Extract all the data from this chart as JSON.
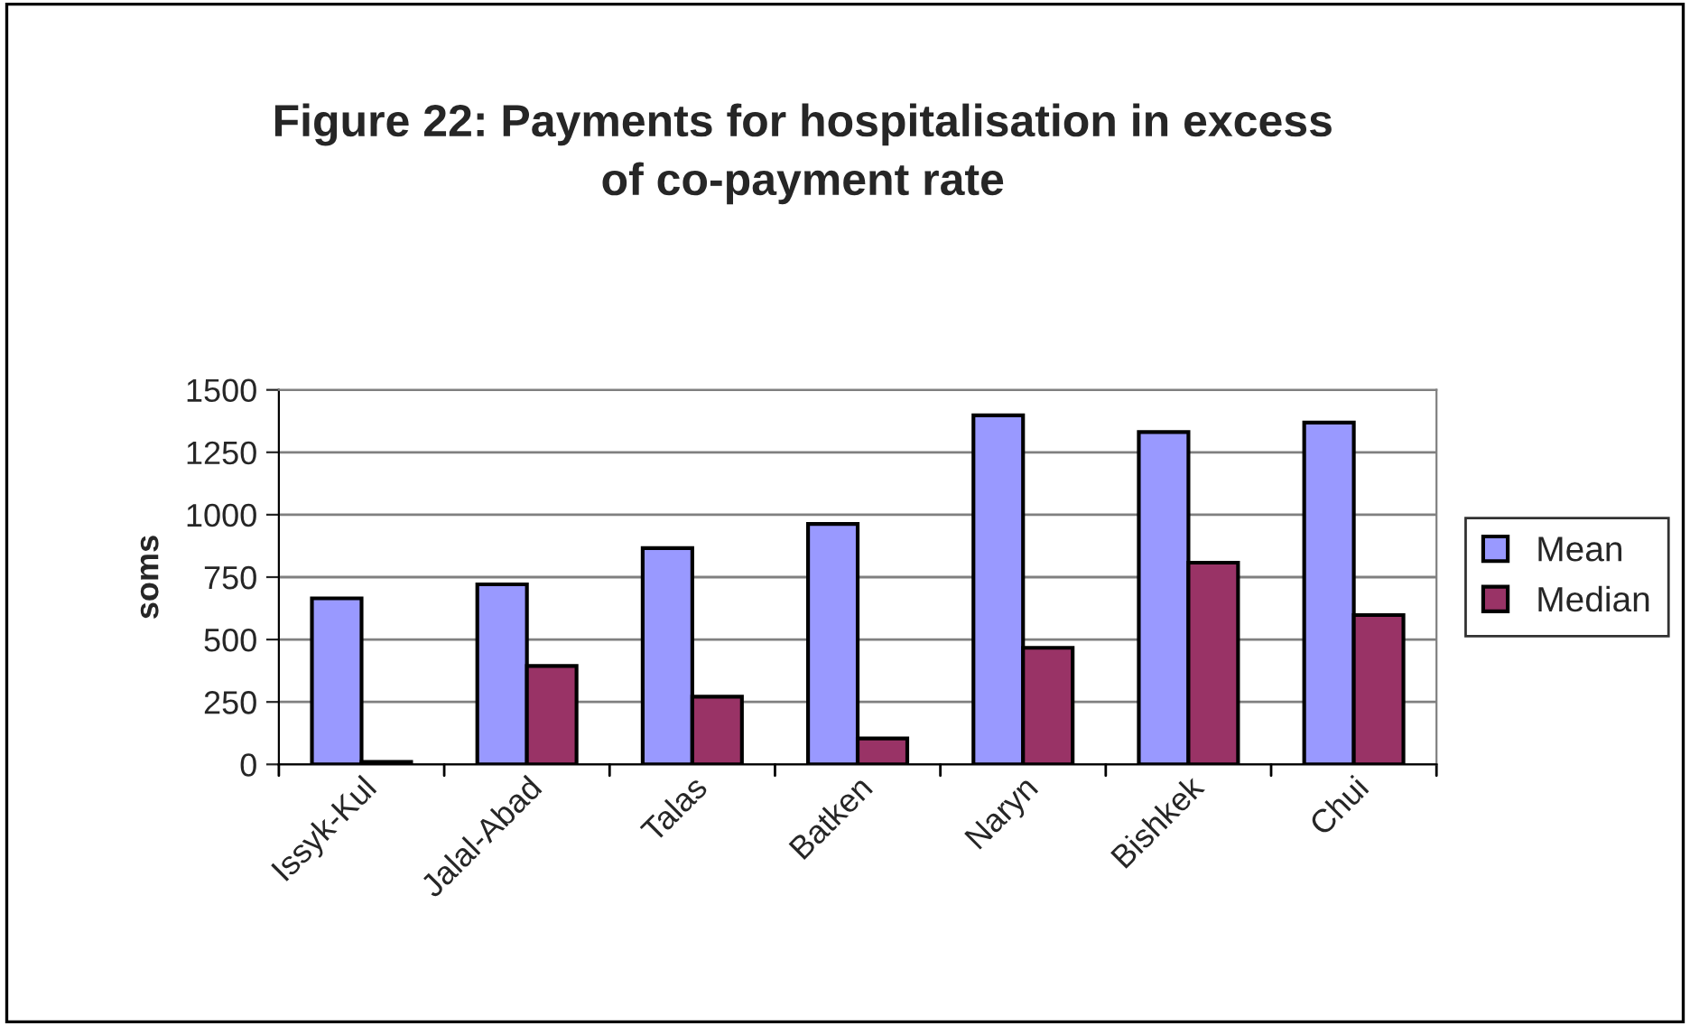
{
  "chart_data": {
    "type": "bar",
    "title": "Figure 22: Payments for hospitalisation in excess\nof co-payment rate",
    "ylabel": "soms",
    "categories": [
      "Issyk-Kul",
      "Jalal-Abad",
      "Talas",
      "Batken",
      "Naryn",
      "Bishkek",
      "Chui"
    ],
    "series": [
      {
        "name": "Mean",
        "color": "#9999ff",
        "values": [
          665,
          721,
          866,
          963,
          1398,
          1331,
          1369
        ]
      },
      {
        "name": "Median",
        "color": "#993366",
        "values": [
          10,
          394,
          271,
          104,
          467,
          808,
          598
        ]
      }
    ],
    "ylim": [
      0,
      1500
    ],
    "yticks": [
      0,
      250,
      500,
      750,
      1000,
      1250,
      1500
    ],
    "grid": "y",
    "legend": "right"
  }
}
